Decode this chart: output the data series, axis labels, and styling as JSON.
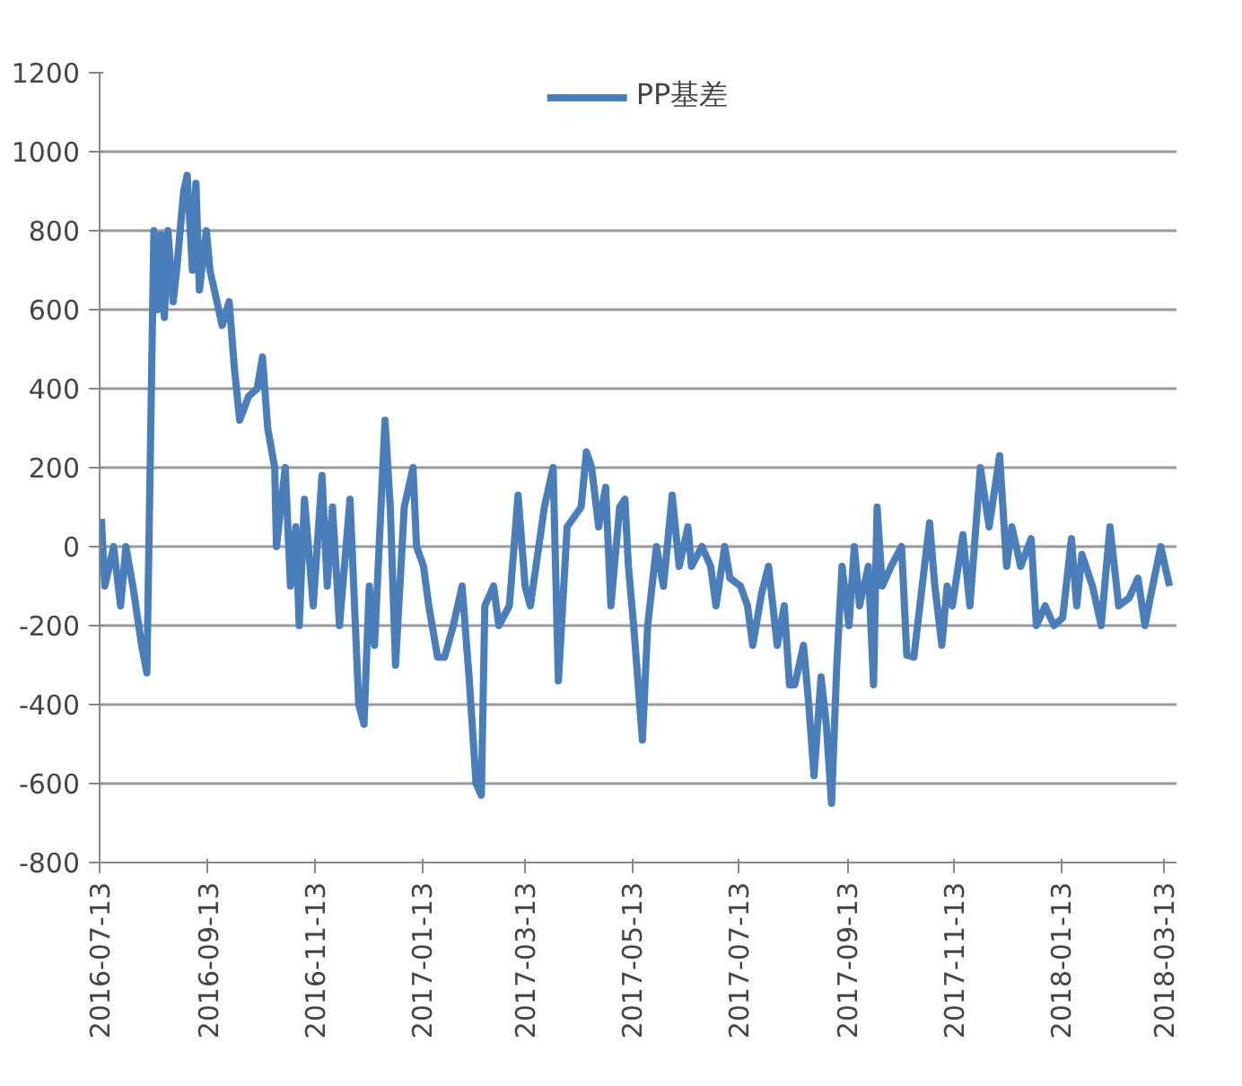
{
  "chart_data": {
    "type": "line",
    "x": [
      "2016-07-14",
      "2016-07-16",
      "2016-07-21",
      "2016-07-25",
      "2016-07-28",
      "2016-08-01",
      "2016-08-06",
      "2016-08-09",
      "2016-08-13",
      "2016-08-15",
      "2016-08-17",
      "2016-08-19",
      "2016-08-21",
      "2016-08-24",
      "2016-08-26",
      "2016-08-30",
      "2016-09-01",
      "2016-09-04",
      "2016-09-06",
      "2016-09-08",
      "2016-09-12",
      "2016-09-14",
      "2016-09-18",
      "2016-09-21",
      "2016-09-25",
      "2016-09-28",
      "2016-10-01",
      "2016-10-06",
      "2016-10-11",
      "2016-10-14",
      "2016-10-17",
      "2016-10-21",
      "2016-10-22",
      "2016-10-27",
      "2016-10-30",
      "2016-11-02",
      "2016-11-04",
      "2016-11-07",
      "2016-11-12",
      "2016-11-17",
      "2016-11-20",
      "2016-11-23",
      "2016-11-27",
      "2016-12-03",
      "2016-12-08",
      "2016-12-11",
      "2016-12-14",
      "2016-12-17",
      "2016-12-23",
      "2016-12-26",
      "2016-12-29",
      "2017-01-03",
      "2017-01-08",
      "2017-01-10",
      "2017-01-14",
      "2017-01-17",
      "2017-01-22",
      "2017-01-26",
      "2017-01-31",
      "2017-02-05",
      "2017-02-09",
      "2017-02-13",
      "2017-02-16",
      "2017-02-18",
      "2017-02-23",
      "2017-02-26",
      "2017-03-04",
      "2017-03-09",
      "2017-03-13",
      "2017-03-16",
      "2017-03-24",
      "2017-03-29",
      "2017-04-01",
      "2017-04-06",
      "2017-04-14",
      "2017-04-17",
      "2017-04-20",
      "2017-04-24",
      "2017-04-28",
      "2017-05-01",
      "2017-05-06",
      "2017-05-09",
      "2017-05-11",
      "2017-05-14",
      "2017-05-19",
      "2017-05-22",
      "2017-05-27",
      "2017-05-31",
      "2017-06-05",
      "2017-06-09",
      "2017-06-14",
      "2017-06-16",
      "2017-06-22",
      "2017-06-27",
      "2017-06-30",
      "2017-07-05",
      "2017-07-08",
      "2017-07-14",
      "2017-07-18",
      "2017-07-21",
      "2017-07-26",
      "2017-07-30",
      "2017-08-04",
      "2017-08-08",
      "2017-08-11",
      "2017-08-14",
      "2017-08-19",
      "2017-08-22",
      "2017-08-25",
      "2017-08-29",
      "2017-09-01",
      "2017-09-04",
      "2017-09-07",
      "2017-09-10",
      "2017-09-14",
      "2017-09-17",
      "2017-09-20",
      "2017-09-25",
      "2017-09-28",
      "2017-09-30",
      "2017-10-03",
      "2017-10-08",
      "2017-10-14",
      "2017-10-17",
      "2017-10-21",
      "2017-10-30",
      "2017-11-02",
      "2017-11-06",
      "2017-11-09",
      "2017-11-12",
      "2017-11-18",
      "2017-11-22",
      "2017-11-28",
      "2017-12-03",
      "2017-12-09",
      "2017-12-13",
      "2017-12-16",
      "2017-12-21",
      "2017-12-27",
      "2017-12-30",
      "2018-01-04",
      "2018-01-09",
      "2018-01-14",
      "2018-01-19",
      "2018-01-22",
      "2018-01-25",
      "2018-01-31",
      "2018-02-05",
      "2018-02-10",
      "2018-02-15",
      "2018-02-21",
      "2018-02-26",
      "2018-03-02",
      "2018-03-05",
      "2018-03-11",
      "2018-03-16"
    ],
    "series": [
      {
        "name": "PP基差",
        "color": "#4a7ebb",
        "values": [
          70,
          -100,
          0,
          -150,
          0,
          -100,
          -250,
          -320,
          800,
          600,
          790,
          580,
          800,
          620,
          700,
          900,
          940,
          700,
          920,
          650,
          800,
          700,
          620,
          560,
          620,
          450,
          320,
          380,
          400,
          480,
          300,
          200,
          0,
          200,
          -100,
          50,
          -200,
          120,
          -150,
          180,
          -100,
          100,
          -200,
          120,
          -400,
          -450,
          -100,
          -250,
          320,
          100,
          -300,
          100,
          200,
          0,
          -50,
          -150,
          -280,
          -280,
          -200,
          -100,
          -330,
          -600,
          -630,
          -150,
          -100,
          -200,
          -150,
          130,
          -100,
          -150,
          100,
          200,
          -340,
          50,
          100,
          240,
          200,
          50,
          150,
          -150,
          100,
          120,
          -50,
          -200,
          -490,
          -200,
          0,
          -100,
          130,
          -50,
          50,
          -50,
          0,
          -50,
          -150,
          0,
          -80,
          -100,
          -150,
          -250,
          -120,
          -50,
          -250,
          -150,
          -350,
          -350,
          -250,
          -400,
          -580,
          -330,
          -450,
          -650,
          -300,
          -50,
          -200,
          0,
          -150,
          -50,
          -350,
          100,
          -100,
          -50,
          0,
          -275,
          -280,
          60,
          -100,
          -250,
          -100,
          -150,
          30,
          -150,
          200,
          50,
          230,
          -50,
          50,
          -50,
          20,
          -200,
          -150,
          -200,
          -180,
          20,
          -150,
          -20,
          -100,
          -200,
          50,
          -150,
          -130,
          -80,
          -200,
          -130,
          0,
          -100
        ]
      }
    ],
    "xlim": [
      "2016-07-13",
      "2018-03-20"
    ],
    "xticks": [
      {
        "value": "2016-07-13",
        "label": "2016-07-13"
      },
      {
        "value": "2016-09-13",
        "label": "2016-09-13"
      },
      {
        "value": "2016-11-13",
        "label": "2016-11-13"
      },
      {
        "value": "2017-01-13",
        "label": "2017-01-13"
      },
      {
        "value": "2017-03-13",
        "label": "2017-03-13"
      },
      {
        "value": "2017-05-13",
        "label": "2017-05-13"
      },
      {
        "value": "2017-07-13",
        "label": "2017-07-13"
      },
      {
        "value": "2017-09-13",
        "label": "2017-09-13"
      },
      {
        "value": "2017-11-13",
        "label": "2017-11-13"
      },
      {
        "value": "2018-01-13",
        "label": "2018-01-13"
      },
      {
        "value": "2018-03-13",
        "label": "2018-03-13"
      }
    ],
    "ylim": [
      -800,
      1200
    ],
    "yticks": [
      -800,
      -600,
      -400,
      -200,
      0,
      200,
      400,
      600,
      800,
      1000,
      1200
    ],
    "grid": "y",
    "legend": "top",
    "marker": "none",
    "line_style": "solid"
  }
}
